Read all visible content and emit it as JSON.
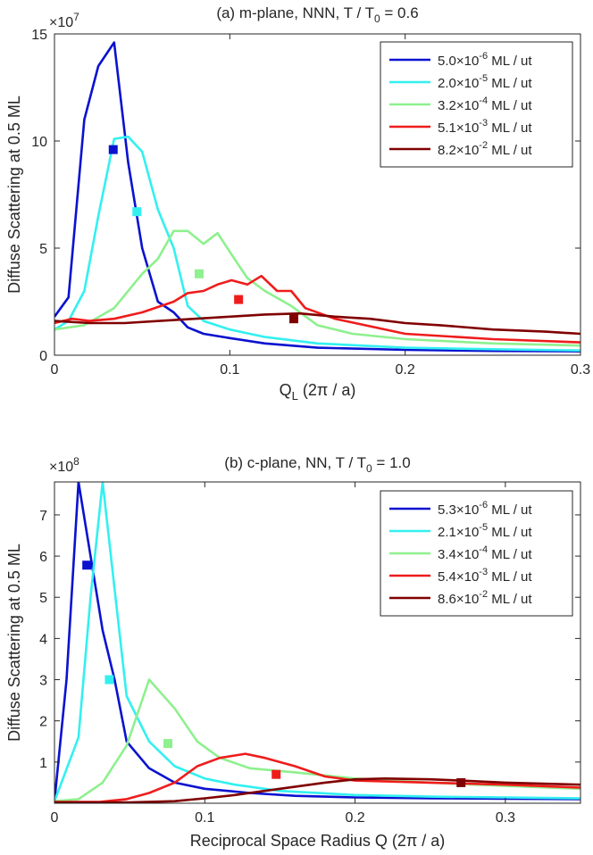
{
  "chart_data": [
    {
      "type": "line",
      "title": "(a) m-plane, NNN, T / T",
      "title_sub": "0",
      "title_tail": " = 0.6",
      "xlabel": "Q",
      "xlabel_sub": "L",
      "xlabel_tail": " (2π / a)",
      "ylabel": "Diffuse Scattering at 0.5 ML",
      "exponent_label": "×10",
      "exponent_power": "7",
      "xlim": [
        0,
        0.3
      ],
      "ylim": [
        0,
        15
      ],
      "xticks": [
        0,
        0.1,
        0.2,
        0.3
      ],
      "xtick_labels": [
        "0",
        "0.1",
        "0.2",
        "0.3"
      ],
      "yticks": [
        0,
        5,
        10,
        15
      ],
      "ytick_labels": [
        "0",
        "5",
        "10",
        "15"
      ],
      "legend_position": "top-right",
      "series": [
        {
          "name": "5.0×10",
          "power": "-6",
          "unit": " ML / ut",
          "color": "#0a12cf",
          "x": [
            0,
            0.008,
            0.017,
            0.025,
            0.034,
            0.042,
            0.05,
            0.059,
            0.068,
            0.076,
            0.085,
            0.1,
            0.12,
            0.15,
            0.2,
            0.25,
            0.3
          ],
          "y": [
            1.8,
            2.7,
            11.0,
            13.5,
            14.6,
            9.0,
            5.0,
            2.5,
            2.0,
            1.3,
            1.0,
            0.8,
            0.55,
            0.35,
            0.25,
            0.2,
            0.18
          ],
          "marker": [
            0.0335,
            9.6
          ]
        },
        {
          "name": "2.0×10",
          "power": "-5",
          "unit": " ML / ut",
          "color": "#33f0f0",
          "x": [
            0,
            0.008,
            0.017,
            0.025,
            0.034,
            0.042,
            0.05,
            0.059,
            0.068,
            0.076,
            0.085,
            0.1,
            0.12,
            0.15,
            0.2,
            0.25,
            0.3
          ],
          "y": [
            1.2,
            1.6,
            3.0,
            6.5,
            10.1,
            10.2,
            9.5,
            6.8,
            5.0,
            2.3,
            1.6,
            1.2,
            0.85,
            0.55,
            0.35,
            0.28,
            0.22
          ],
          "marker": [
            0.047,
            6.7
          ]
        },
        {
          "name": "3.2×10",
          "power": "-4",
          "unit": " ML / ut",
          "color": "#8ef08e",
          "x": [
            0,
            0.017,
            0.034,
            0.05,
            0.059,
            0.068,
            0.076,
            0.085,
            0.093,
            0.101,
            0.11,
            0.12,
            0.135,
            0.15,
            0.17,
            0.2,
            0.25,
            0.3
          ],
          "y": [
            1.2,
            1.4,
            2.2,
            3.8,
            4.5,
            5.8,
            5.8,
            5.2,
            5.7,
            4.7,
            3.6,
            3.0,
            2.3,
            1.4,
            1.0,
            0.75,
            0.55,
            0.45
          ],
          "marker": [
            0.0825,
            3.8
          ]
        },
        {
          "name": "5.1×10",
          "power": "-3",
          "unit": " ML / ut",
          "color": "#ef1c1c",
          "x": [
            0,
            0.01,
            0.02,
            0.034,
            0.05,
            0.068,
            0.076,
            0.085,
            0.093,
            0.101,
            0.11,
            0.118,
            0.127,
            0.135,
            0.143,
            0.16,
            0.2,
            0.25,
            0.3
          ],
          "y": [
            1.5,
            1.7,
            1.6,
            1.7,
            2.0,
            2.5,
            2.9,
            3.0,
            3.3,
            3.5,
            3.3,
            3.7,
            3.0,
            3.0,
            2.2,
            1.7,
            1.0,
            0.75,
            0.6
          ],
          "marker": [
            0.105,
            2.6
          ]
        },
        {
          "name": "8.2×10",
          "power": "-2",
          "unit": " ML / ut",
          "color": "#800000",
          "x": [
            0,
            0.02,
            0.04,
            0.06,
            0.08,
            0.1,
            0.12,
            0.14,
            0.16,
            0.18,
            0.2,
            0.22,
            0.25,
            0.28,
            0.3
          ],
          "y": [
            1.6,
            1.5,
            1.5,
            1.6,
            1.7,
            1.8,
            1.9,
            1.95,
            1.8,
            1.7,
            1.5,
            1.4,
            1.2,
            1.1,
            1.0
          ],
          "marker": [
            0.1365,
            1.7
          ]
        }
      ]
    },
    {
      "type": "line",
      "title": "(b) c-plane, NN, T / T",
      "title_sub": "0",
      "title_tail": " = 1.0",
      "xlabel": "Reciprocal Space Radius Q (2π / a)",
      "xlabel_sub": "",
      "xlabel_tail": "",
      "ylabel": "Diffuse Scattering at 0.5 ML",
      "exponent_label": "×10",
      "exponent_power": "8",
      "xlim": [
        0,
        0.35
      ],
      "ylim": [
        0,
        7.8
      ],
      "xticks": [
        0,
        0.1,
        0.2,
        0.3
      ],
      "xtick_labels": [
        "0",
        "0.1",
        "0.2",
        "0.3"
      ],
      "yticks": [
        1,
        2,
        3,
        4,
        5,
        6,
        7
      ],
      "ytick_labels": [
        "1",
        "2",
        "3",
        "4",
        "5",
        "6",
        "7"
      ],
      "legend_position": "top-right",
      "series": [
        {
          "name": "5.3×10",
          "power": "-6",
          "unit": " ML / ut",
          "color": "#0a12cf",
          "x": [
            0,
            0.008,
            0.016,
            0.024,
            0.032,
            0.04,
            0.048,
            0.063,
            0.08,
            0.1,
            0.13,
            0.16,
            0.2,
            0.25,
            0.3,
            0.35
          ],
          "y": [
            0.05,
            3.0,
            7.8,
            6.0,
            4.2,
            3.0,
            1.5,
            0.85,
            0.5,
            0.35,
            0.25,
            0.18,
            0.14,
            0.12,
            0.11,
            0.1
          ],
          "marker": [
            0.0215,
            5.78
          ]
        },
        {
          "name": "2.1×10",
          "power": "-5",
          "unit": " ML / ut",
          "color": "#33f0f0",
          "x": [
            0,
            0.016,
            0.024,
            0.032,
            0.04,
            0.048,
            0.063,
            0.08,
            0.1,
            0.12,
            0.15,
            0.2,
            0.25,
            0.3,
            0.35
          ],
          "y": [
            0.05,
            1.6,
            5.0,
            7.8,
            5.2,
            2.6,
            1.5,
            0.9,
            0.6,
            0.45,
            0.3,
            0.2,
            0.16,
            0.14,
            0.12
          ],
          "marker": [
            0.0365,
            3.0
          ]
        },
        {
          "name": "3.4×10",
          "power": "-4",
          "unit": " ML / ut",
          "color": "#8ef08e",
          "x": [
            0,
            0.016,
            0.032,
            0.048,
            0.063,
            0.08,
            0.095,
            0.11,
            0.13,
            0.16,
            0.2,
            0.25,
            0.3,
            0.35
          ],
          "y": [
            0.05,
            0.1,
            0.5,
            1.4,
            3.0,
            2.3,
            1.5,
            1.1,
            0.85,
            0.75,
            0.6,
            0.5,
            0.42,
            0.35
          ],
          "marker": [
            0.0755,
            1.45
          ]
        },
        {
          "name": "5.4×10",
          "power": "-3",
          "unit": " ML / ut",
          "color": "#ef1c1c",
          "x": [
            0,
            0.03,
            0.048,
            0.063,
            0.08,
            0.095,
            0.11,
            0.127,
            0.14,
            0.16,
            0.18,
            0.2,
            0.25,
            0.3,
            0.35
          ],
          "y": [
            0.03,
            0.03,
            0.1,
            0.25,
            0.5,
            0.9,
            1.1,
            1.2,
            1.1,
            0.9,
            0.65,
            0.55,
            0.5,
            0.45,
            0.38
          ],
          "marker": [
            0.1475,
            0.7
          ]
        },
        {
          "name": "8.6×10",
          "power": "-2",
          "unit": " ML / ut",
          "color": "#800000",
          "x": [
            0,
            0.05,
            0.08,
            0.1,
            0.12,
            0.15,
            0.18,
            0.2,
            0.22,
            0.25,
            0.27,
            0.3,
            0.35
          ],
          "y": [
            0.02,
            0.02,
            0.05,
            0.12,
            0.2,
            0.35,
            0.5,
            0.58,
            0.6,
            0.58,
            0.55,
            0.5,
            0.45
          ],
          "marker": [
            0.2705,
            0.5
          ]
        }
      ]
    }
  ]
}
